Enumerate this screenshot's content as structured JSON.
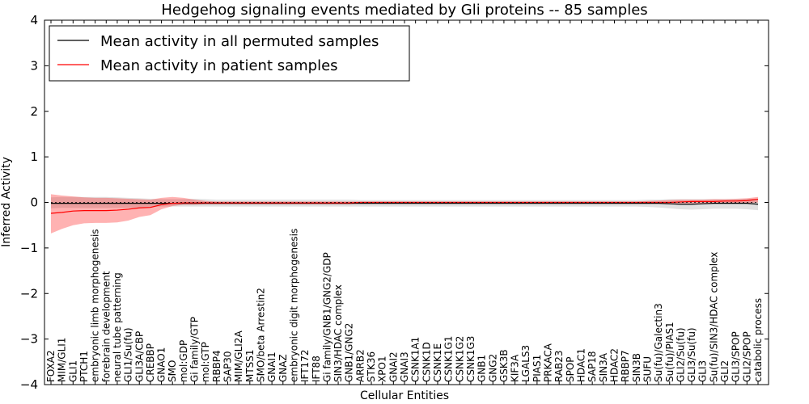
{
  "chart_data": {
    "type": "line",
    "title": "Hedgehog signaling events mediated by Gli proteins -- 85 samples",
    "xlabel": "Cellular Entities",
    "ylabel": "Inferred Activity",
    "ylim": [
      -4,
      4
    ],
    "yticks": [
      -4,
      -3,
      -2,
      -1,
      0,
      1,
      2,
      3,
      4
    ],
    "ytick_labels": [
      "−4",
      "−3",
      "−2",
      "−1",
      "0",
      "1",
      "2",
      "3",
      "4"
    ],
    "legend_position": "top-left",
    "categories": [
      "FOXA2",
      "MIM/GLI1",
      "GLI1",
      "PTCH1",
      "embryonic limb morphogenesis",
      "forebrain development",
      "neural tube patterning",
      "GLI1/Su(fu)",
      "GLI3A/CBP",
      "CREBBP",
      "GNAO1",
      "SMO",
      "mol:GDP",
      "Gi family/GTP",
      "mol:GTP",
      "RBBP4",
      "SAP30",
      "MIM/GLI2A",
      "MTSS1",
      "SMO/beta Arrestin2",
      "GNAI1",
      "GNAZ",
      "embryonic digit morphogenesis",
      "IFT172",
      "IFT88",
      "Gi family/GNB1/GNG2/GDP",
      "SIN3/HDAC complex",
      "GNB1/GNG2",
      "ARRB2",
      "STK36",
      "XPO1",
      "GNAI2",
      "GNAI3",
      "CSNK1A1",
      "CSNK1D",
      "CSNK1E",
      "CSNK1G1",
      "CSNK1G2",
      "CSNK1G3",
      "GNB1",
      "GNG2",
      "GSK3B",
      "KIF3A",
      "LGALS3",
      "PIAS1",
      "PRKACA",
      "RAB23",
      "SPOP",
      "HDAC1",
      "SAP18",
      "SIN3A",
      "HDAC2",
      "RBBP7",
      "SIN3B",
      "SUFU",
      "Su(fu)/Galectin3",
      "Su(fu)/PIAS1",
      "GLI2/Su(fu)",
      "GLI3/Su(fu)",
      "GLI3",
      "Su(fu)/SIN3/HDAC complex",
      "GLI2",
      "GLI3/SPOP",
      "GLI2/SPOP",
      "catabolic process"
    ],
    "series": [
      {
        "name": "Mean activity in all permuted samples",
        "color": "#000000",
        "values": [
          -0.02,
          -0.02,
          -0.02,
          -0.02,
          -0.02,
          -0.02,
          -0.02,
          -0.02,
          -0.02,
          -0.02,
          -0.02,
          -0.02,
          -0.02,
          -0.02,
          -0.02,
          -0.02,
          -0.02,
          -0.02,
          -0.02,
          -0.02,
          -0.02,
          -0.02,
          -0.02,
          -0.02,
          -0.02,
          -0.02,
          -0.02,
          -0.02,
          -0.02,
          -0.02,
          -0.02,
          -0.02,
          -0.02,
          -0.02,
          -0.02,
          -0.02,
          -0.02,
          -0.02,
          -0.02,
          -0.02,
          -0.02,
          -0.02,
          -0.02,
          -0.02,
          -0.02,
          -0.02,
          -0.02,
          -0.02,
          -0.02,
          -0.02,
          -0.02,
          -0.02,
          -0.02,
          -0.02,
          -0.02,
          -0.02,
          -0.03,
          -0.04,
          -0.04,
          -0.03,
          -0.02,
          -0.02,
          -0.02,
          -0.02,
          -0.04
        ],
        "band_lower": [
          -0.13,
          -0.12,
          -0.12,
          -0.12,
          -0.12,
          -0.12,
          -0.12,
          -0.12,
          -0.11,
          -0.1,
          -0.09,
          -0.09,
          -0.09,
          -0.09,
          -0.09,
          -0.09,
          -0.09,
          -0.09,
          -0.09,
          -0.09,
          -0.09,
          -0.09,
          -0.09,
          -0.09,
          -0.09,
          -0.09,
          -0.09,
          -0.09,
          -0.09,
          -0.09,
          -0.09,
          -0.09,
          -0.09,
          -0.09,
          -0.09,
          -0.09,
          -0.09,
          -0.09,
          -0.09,
          -0.09,
          -0.09,
          -0.09,
          -0.09,
          -0.09,
          -0.09,
          -0.09,
          -0.09,
          -0.09,
          -0.09,
          -0.09,
          -0.09,
          -0.09,
          -0.09,
          -0.09,
          -0.1,
          -0.11,
          -0.13,
          -0.15,
          -0.16,
          -0.15,
          -0.14,
          -0.14,
          -0.14,
          -0.15,
          -0.17
        ],
        "band_upper": [
          0.11,
          0.12,
          0.12,
          0.12,
          0.12,
          0.12,
          0.11,
          0.1,
          0.09,
          0.08,
          0.07,
          0.07,
          0.07,
          0.08,
          0.07,
          0.06,
          0.06,
          0.06,
          0.06,
          0.06,
          0.06,
          0.06,
          0.06,
          0.06,
          0.06,
          0.06,
          0.06,
          0.06,
          0.05,
          0.05,
          0.05,
          0.05,
          0.05,
          0.05,
          0.05,
          0.05,
          0.05,
          0.05,
          0.05,
          0.05,
          0.05,
          0.05,
          0.05,
          0.05,
          0.05,
          0.05,
          0.05,
          0.05,
          0.05,
          0.05,
          0.05,
          0.05,
          0.05,
          0.05,
          0.06,
          0.06,
          0.07,
          0.07,
          0.07,
          0.07,
          0.07,
          0.07,
          0.07,
          0.08,
          0.08
        ]
      },
      {
        "name": "Mean activity in patient samples",
        "color": "#ff0000",
        "values": [
          -0.24,
          -0.22,
          -0.19,
          -0.18,
          -0.18,
          -0.18,
          -0.17,
          -0.15,
          -0.12,
          -0.11,
          -0.05,
          -0.02,
          -0.01,
          -0.01,
          -0.01,
          -0.01,
          -0.01,
          -0.01,
          -0.01,
          -0.01,
          -0.01,
          -0.01,
          -0.01,
          -0.01,
          -0.01,
          -0.01,
          -0.01,
          -0.01,
          0.0,
          0.0,
          0.0,
          0.0,
          0.0,
          0.0,
          0.0,
          0.0,
          0.0,
          0.0,
          0.0,
          0.0,
          0.0,
          0.0,
          0.0,
          0.0,
          0.0,
          0.0,
          0.0,
          0.0,
          0.0,
          0.0,
          0.0,
          0.0,
          0.0,
          0.0,
          0.0,
          0.0,
          0.0,
          0.01,
          0.02,
          0.02,
          0.02,
          0.03,
          0.03,
          0.04,
          0.07
        ],
        "band_lower": [
          -0.68,
          -0.58,
          -0.5,
          -0.46,
          -0.45,
          -0.45,
          -0.44,
          -0.4,
          -0.32,
          -0.28,
          -0.15,
          -0.08,
          -0.05,
          -0.05,
          -0.04,
          -0.04,
          -0.04,
          -0.04,
          -0.04,
          -0.04,
          -0.04,
          -0.04,
          -0.04,
          -0.04,
          -0.04,
          -0.04,
          -0.04,
          -0.04,
          -0.02,
          -0.02,
          -0.02,
          -0.02,
          -0.02,
          -0.02,
          -0.02,
          -0.02,
          -0.02,
          -0.02,
          -0.02,
          -0.02,
          -0.02,
          -0.02,
          -0.02,
          -0.02,
          -0.02,
          -0.02,
          -0.02,
          -0.02,
          -0.02,
          -0.02,
          -0.02,
          -0.02,
          -0.02,
          -0.02,
          -0.02,
          -0.02,
          -0.02,
          -0.02,
          -0.02,
          -0.02,
          -0.02,
          -0.02,
          -0.02,
          -0.02,
          0.0
        ],
        "band_upper": [
          0.18,
          0.15,
          0.13,
          0.11,
          0.1,
          0.1,
          0.09,
          0.08,
          0.07,
          0.06,
          0.1,
          0.12,
          0.1,
          0.06,
          0.03,
          0.02,
          0.02,
          0.02,
          0.02,
          0.02,
          0.02,
          0.02,
          0.02,
          0.02,
          0.02,
          0.02,
          0.02,
          0.02,
          0.02,
          0.02,
          0.02,
          0.02,
          0.02,
          0.02,
          0.02,
          0.02,
          0.02,
          0.02,
          0.02,
          0.02,
          0.02,
          0.02,
          0.02,
          0.02,
          0.02,
          0.02,
          0.02,
          0.02,
          0.02,
          0.02,
          0.02,
          0.02,
          0.02,
          0.02,
          0.03,
          0.04,
          0.05,
          0.06,
          0.06,
          0.06,
          0.07,
          0.07,
          0.08,
          0.09,
          0.12
        ]
      }
    ]
  }
}
